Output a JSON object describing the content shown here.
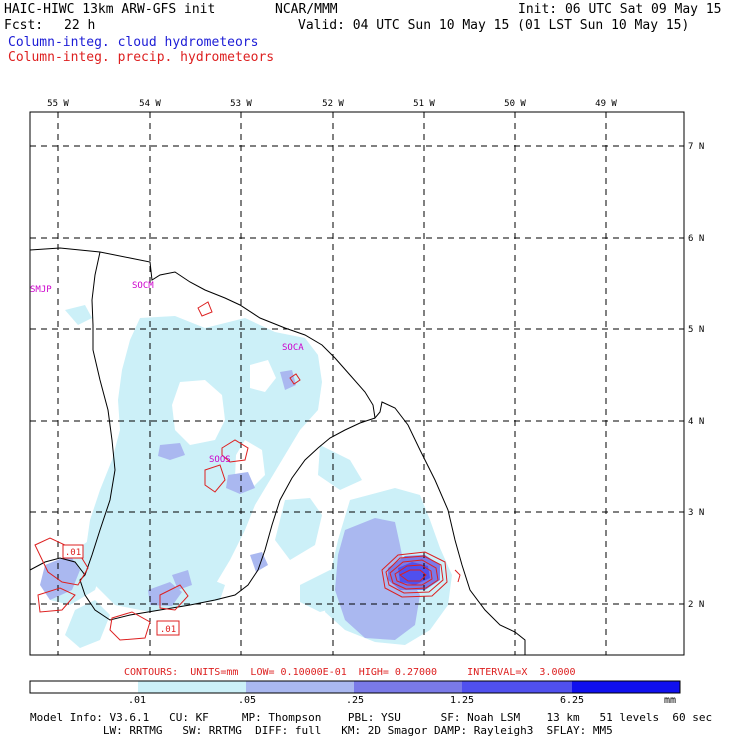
{
  "header": {
    "model": "HAIC-HIWC 13km ARW-GFS init",
    "org": "NCAR/MMM",
    "init": "Init: 06 UTC Sat 09 May 15",
    "fcst_label": "Fcst:",
    "fcst_value": "22 h",
    "valid": "Valid: 04 UTC Sun 10 May 15 (01 LST Sun 10 May 15)",
    "field1": "Column-integ. cloud hydrometeors",
    "field2": "Column-integ. precip. hydrometeors"
  },
  "longitude_labels": [
    "55 W",
    "54 W",
    "53 W",
    "52 W",
    "51 W",
    "50 W",
    "49 W"
  ],
  "latitude_labels": [
    "7 N",
    "6 N",
    "5 N",
    "4 N",
    "3 N",
    "2 N"
  ],
  "stations": [
    "SMJP",
    "SOCM",
    "SOCA",
    "SOOS"
  ],
  "contour_labels": [
    ".01",
    ".01"
  ],
  "contours_line": "CONTOURS:  UNITS=mm  LOW= 0.10000E-01  HIGH= 0.27000     INTERVAL=X  3.0000",
  "colorbar": {
    "ticks": [
      ".01",
      ".05",
      ".25",
      "1.25",
      "6.25"
    ],
    "unit": "mm",
    "colors": [
      "#ffffff",
      "#ccf0f8",
      "#aab8f0",
      "#7a7ae8",
      "#5050ee",
      "#1010ee"
    ]
  },
  "footer": {
    "line1": "Model Info: V3.6.1   CU: KF     MP: Thompson    PBL: YSU      SF: Noah LSM    13 km   51 levels  60 sec",
    "line2": "           LW: RRTMG   SW: RRTMG  DIFF: full   KM: 2D Smagor DAMP: Rayleigh3  SFLAY: MM5"
  },
  "colors": {
    "cloud_fill": "#ccf0f8",
    "light_blue_fill": "#aab8f0",
    "mid_blue_fill": "#7a7ae8",
    "precip_contour": "#dd2020",
    "station_label": "#cc00cc"
  }
}
